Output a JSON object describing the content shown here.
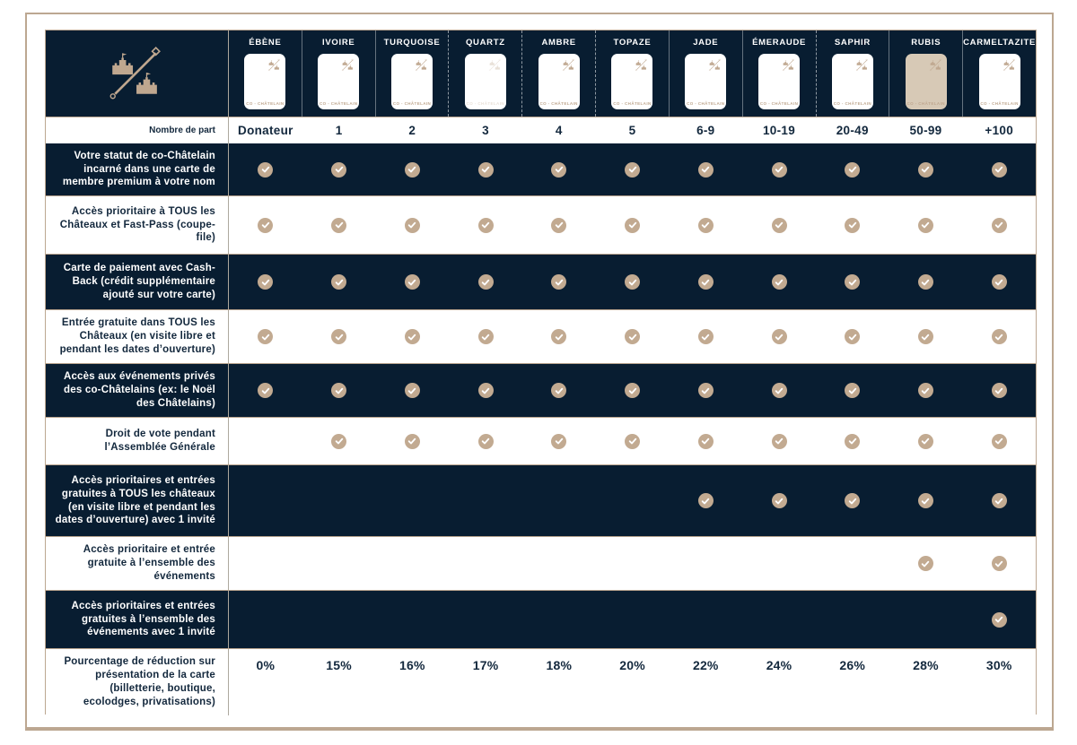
{
  "colors": {
    "navy": "#081D31",
    "tan": "#C2AA91",
    "frame_tan": "#BCA791",
    "rubis_card_bg": "#D7C9B6",
    "white": "#FFFFFF"
  },
  "logo": {
    "icon": "co-chatelain-castle-emblem-icon"
  },
  "table": {
    "parts_label": "Nombre de part",
    "card_footer": "CO - CHÂTELAIN",
    "columns": [
      {
        "name": "ÉBÈNE",
        "parts": "Donateur",
        "card_style": "white"
      },
      {
        "name": "IVOIRE",
        "parts": "1",
        "card_style": "white"
      },
      {
        "name": "TURQUOISE",
        "parts": "2",
        "card_style": "white"
      },
      {
        "name": "QUARTZ",
        "parts": "3",
        "card_style": "faded"
      },
      {
        "name": "AMBRE",
        "parts": "4",
        "card_style": "white"
      },
      {
        "name": "TOPAZE",
        "parts": "5",
        "card_style": "white"
      },
      {
        "name": "JADE",
        "parts": "6-9",
        "card_style": "white"
      },
      {
        "name": "ÉMERAUDE",
        "parts": "10-19",
        "card_style": "white"
      },
      {
        "name": "SAPHIR",
        "parts": "20-49",
        "card_style": "white"
      },
      {
        "name": "RUBIS",
        "parts": "50-99",
        "card_style": "beige"
      },
      {
        "name": "CARMELTAZITE",
        "parts": "+100",
        "card_style": "white"
      }
    ],
    "rows": [
      {
        "label": "Votre statut de co-Châtelain incarné dans une carte de membre premium à votre nom",
        "checks": [
          1,
          1,
          1,
          1,
          1,
          1,
          1,
          1,
          1,
          1,
          1
        ]
      },
      {
        "label": "Accès prioritaire à TOUS les Châteaux et Fast-Pass (coupe-file)",
        "checks": [
          1,
          1,
          1,
          1,
          1,
          1,
          1,
          1,
          1,
          1,
          1
        ]
      },
      {
        "label": "Carte de paiement avec Cash-Back (crédit supplémentaire ajouté sur votre carte)",
        "checks": [
          1,
          1,
          1,
          1,
          1,
          1,
          1,
          1,
          1,
          1,
          1
        ]
      },
      {
        "label": "Entrée gratuite dans TOUS les Châteaux (en visite libre et pendant les dates d’ouverture)",
        "checks": [
          1,
          1,
          1,
          1,
          1,
          1,
          1,
          1,
          1,
          1,
          1
        ]
      },
      {
        "label": "Accès aux événements privés des co-Châtelains (ex: le Noël des Châtelains)",
        "checks": [
          1,
          1,
          1,
          1,
          1,
          1,
          1,
          1,
          1,
          1,
          1
        ]
      },
      {
        "label": "Droit de vote pendant l’Assemblée Générale",
        "checks": [
          0,
          1,
          1,
          1,
          1,
          1,
          1,
          1,
          1,
          1,
          1
        ]
      },
      {
        "label": "Accès prioritaires et entrées gratuites à TOUS les châteaux (en visite libre et pendant les dates d’ouverture) avec 1 invité",
        "checks": [
          0,
          0,
          0,
          0,
          0,
          0,
          1,
          1,
          1,
          1,
          1
        ]
      },
      {
        "label": "Accès prioritaire et entrée gratuite à l’ensemble des événements",
        "checks": [
          0,
          0,
          0,
          0,
          0,
          0,
          0,
          0,
          0,
          1,
          1
        ]
      },
      {
        "label": "Accès prioritaires et entrées gratuites à l’ensemble des événements avec 1 invité",
        "checks": [
          0,
          0,
          0,
          0,
          0,
          0,
          0,
          0,
          0,
          0,
          1
        ]
      },
      {
        "label": "Pourcentage de réduction sur présentation de la carte (billetterie, boutique, ecolodges, privatisations)",
        "values": [
          "0%",
          "15%",
          "16%",
          "17%",
          "18%",
          "20%",
          "22%",
          "24%",
          "26%",
          "28%",
          "30%"
        ]
      }
    ]
  }
}
